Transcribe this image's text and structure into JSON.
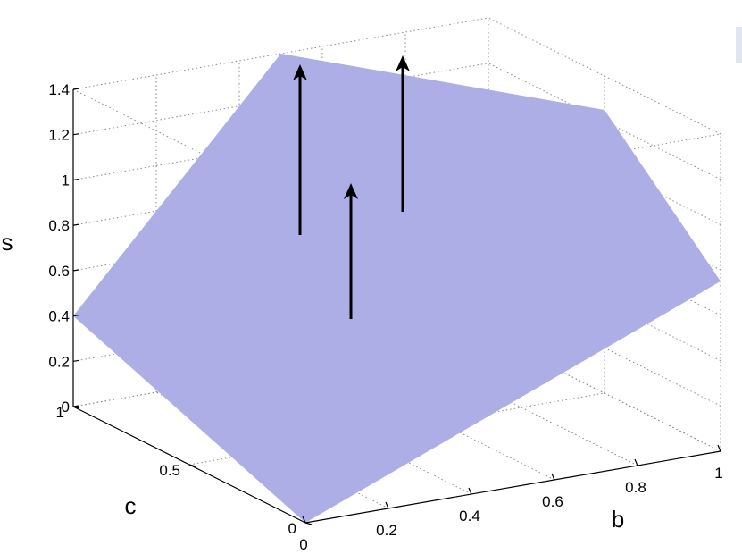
{
  "chart_data": {
    "type": "surface",
    "xlabel": "b",
    "ylabel": "c",
    "zlabel": "s",
    "x_ticks": [
      "0",
      "0.2",
      "0.4",
      "0.6",
      "0.8",
      "1"
    ],
    "y_ticks": [
      "0",
      "0.5",
      "1"
    ],
    "z_ticks": [
      "0",
      "0.2",
      "0.4",
      "0.6",
      "0.8",
      "1",
      "1.2",
      "1.4"
    ],
    "xlim": [
      0,
      1
    ],
    "ylim": [
      0,
      1
    ],
    "zlim": [
      0,
      1.4
    ],
    "grid": true,
    "surface_color": "#aeaee6",
    "surface_vertices": [
      {
        "b": 0,
        "c": 0,
        "s": 0
      },
      {
        "b": 1,
        "c": 0,
        "s": 0.75
      },
      {
        "b": 1,
        "c": 0.5,
        "s": 1.25
      },
      {
        "b": 0.5,
        "c": 1,
        "s": 1.4
      },
      {
        "b": 0,
        "c": 1,
        "s": 0.4
      }
    ],
    "arrows": [
      {
        "name": "arrow-left"
      },
      {
        "name": "arrow-middle"
      },
      {
        "name": "arrow-right"
      }
    ]
  }
}
